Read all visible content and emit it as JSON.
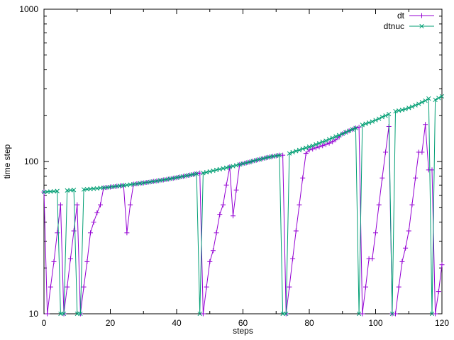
{
  "chart_data": {
    "type": "line",
    "title": "",
    "xlabel": "steps",
    "ylabel": "time step",
    "x_is_index": true,
    "xlim": [
      0,
      120
    ],
    "ylim": [
      10,
      1000
    ],
    "y_scale": "log10",
    "x_ticks": [
      0,
      20,
      40,
      60,
      80,
      100,
      120
    ],
    "x_minor_ticks": [
      10,
      30,
      50,
      70,
      90,
      110
    ],
    "y_ticks": [
      10,
      100,
      1000
    ],
    "grid": false,
    "legend_position": "top-right-inside",
    "background_color": "#ffffff",
    "axis_color": "#000000",
    "series": [
      {
        "name": "dt",
        "color": "#9400D3",
        "marker": "plus",
        "values": [
          63,
          10,
          15,
          22,
          34,
          52,
          10,
          15,
          23,
          35,
          52,
          10,
          15,
          22,
          34,
          40,
          46,
          52,
          67.3,
          67.6,
          68,
          68.4,
          68.8,
          69.2,
          69.6,
          34,
          52,
          71,
          71.4,
          71.9,
          72.4,
          72.9,
          73.4,
          74,
          74.5,
          75.1,
          75.7,
          76.3,
          77,
          77.7,
          78.4,
          79.1,
          79.9,
          80.7,
          81.5,
          82.3,
          83.2,
          84,
          10,
          15,
          22,
          26,
          34,
          45,
          52,
          70,
          92,
          44,
          65,
          95.6,
          96.8,
          98,
          99.3,
          100.6,
          102,
          103.3,
          104.5,
          105.8,
          107,
          108,
          109,
          110,
          110,
          10,
          15,
          23,
          35,
          52,
          78,
          113,
          119,
          121,
          123,
          125,
          127,
          129.5,
          132,
          135,
          139,
          145,
          152,
          155.5,
          159,
          162.5,
          166,
          168,
          10,
          15,
          23,
          23,
          34,
          52,
          78,
          115,
          170,
          10,
          10,
          15,
          22,
          27,
          35,
          52,
          78,
          115,
          115,
          175,
          88,
          88,
          10,
          14,
          21
        ]
      },
      {
        "name": "dtnuc",
        "color": "#009E73",
        "marker": "cross",
        "values": [
          63,
          63.2,
          63.5,
          63.7,
          64,
          10,
          10,
          64.5,
          64.8,
          65,
          10,
          10,
          65.5,
          65.8,
          66,
          66.3,
          66.6,
          67,
          67.3,
          67.6,
          68,
          68.4,
          68.8,
          69.2,
          69.6,
          70,
          70.5,
          71,
          71.4,
          71.9,
          72.4,
          72.9,
          73.4,
          74,
          74.5,
          75.1,
          75.7,
          76.3,
          77,
          77.7,
          78.4,
          79.1,
          79.9,
          80.7,
          81.5,
          82.3,
          83.2,
          10,
          84.1,
          85,
          86,
          87,
          88,
          89,
          90,
          91,
          92.1,
          93.2,
          94.4,
          95.6,
          96.8,
          98,
          99.3,
          100.6,
          102,
          103.3,
          104.5,
          105.8,
          107,
          108,
          109,
          110,
          10,
          10,
          113,
          115,
          117,
          119,
          121,
          123,
          125,
          127,
          129.5,
          132,
          134.5,
          137,
          140,
          143,
          146,
          149,
          152,
          155.5,
          159,
          162.5,
          166,
          10,
          174,
          177,
          180,
          183,
          187,
          191,
          196,
          200,
          205,
          10,
          214,
          216,
          218,
          221,
          225,
          229,
          234,
          239,
          245,
          251,
          259,
          10,
          254,
          261,
          268
        ]
      }
    ]
  }
}
